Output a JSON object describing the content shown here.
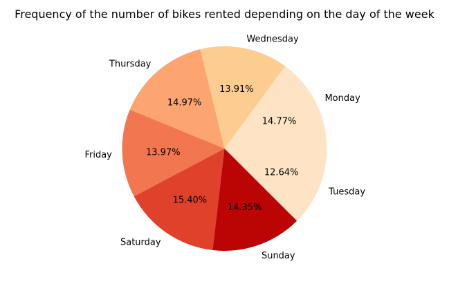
{
  "chart_data": {
    "type": "pie",
    "title": "Frequency of the number of bikes rented depending on the day of the week",
    "categories": [
      "Monday",
      "Tuesday",
      "Sunday",
      "Saturday",
      "Friday",
      "Thursday",
      "Wednesday"
    ],
    "values": [
      14.77,
      12.64,
      14.35,
      15.4,
      13.97,
      14.97,
      13.91
    ],
    "labels_pct": [
      "14.77%",
      "12.64%",
      "14.35%",
      "15.40%",
      "13.97%",
      "14.97%",
      "13.91%"
    ],
    "colors": [
      "#fee4c4",
      "#fee4c4",
      "#bb0404",
      "#e0412b",
      "#f27650",
      "#fca571",
      "#fdcc91"
    ],
    "legend": "none"
  }
}
